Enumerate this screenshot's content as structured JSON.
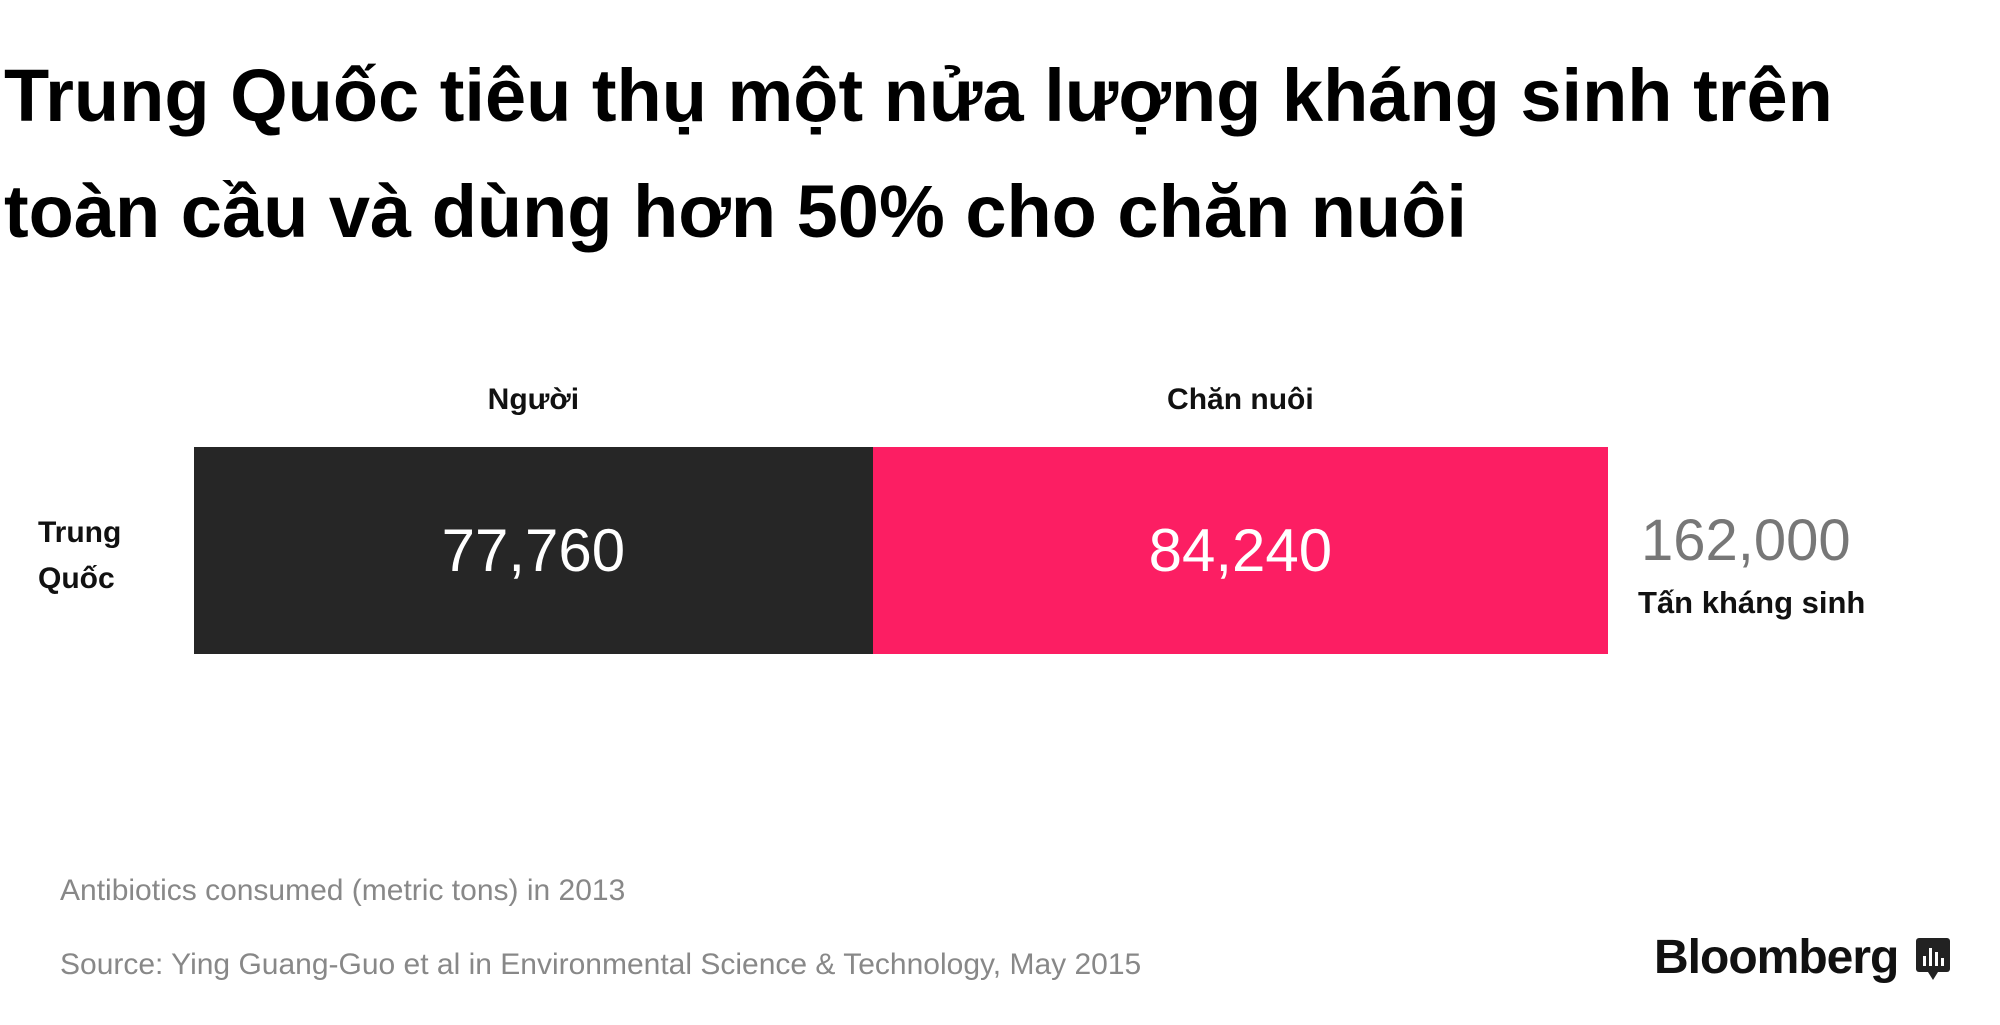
{
  "chart_data": {
    "type": "stacked_bar_horizontal",
    "title": "Trung Quốc tiêu thụ một nửa lượng kháng sinh trên toàn cầu và dùng hơn 50% cho chăn nuôi",
    "categories": [
      "Trung Quốc"
    ],
    "series": [
      {
        "name": "Người",
        "color": "#262626",
        "values": [
          77760
        ],
        "value_labels": [
          "77,760"
        ]
      },
      {
        "name": "Chăn nuôi",
        "color": "#fc1e63",
        "values": [
          84240
        ],
        "value_labels": [
          "84,240"
        ]
      }
    ],
    "totals": [
      162000
    ],
    "total_labels": [
      "162,000"
    ],
    "total_unit": "Tấn kháng sinh",
    "note": "Antibiotics consumed (metric tons) in 2013",
    "source": "Source: Ying Guang-Guo et al in Environmental Science & Technology, May 2015",
    "brand": "Bloomberg"
  }
}
